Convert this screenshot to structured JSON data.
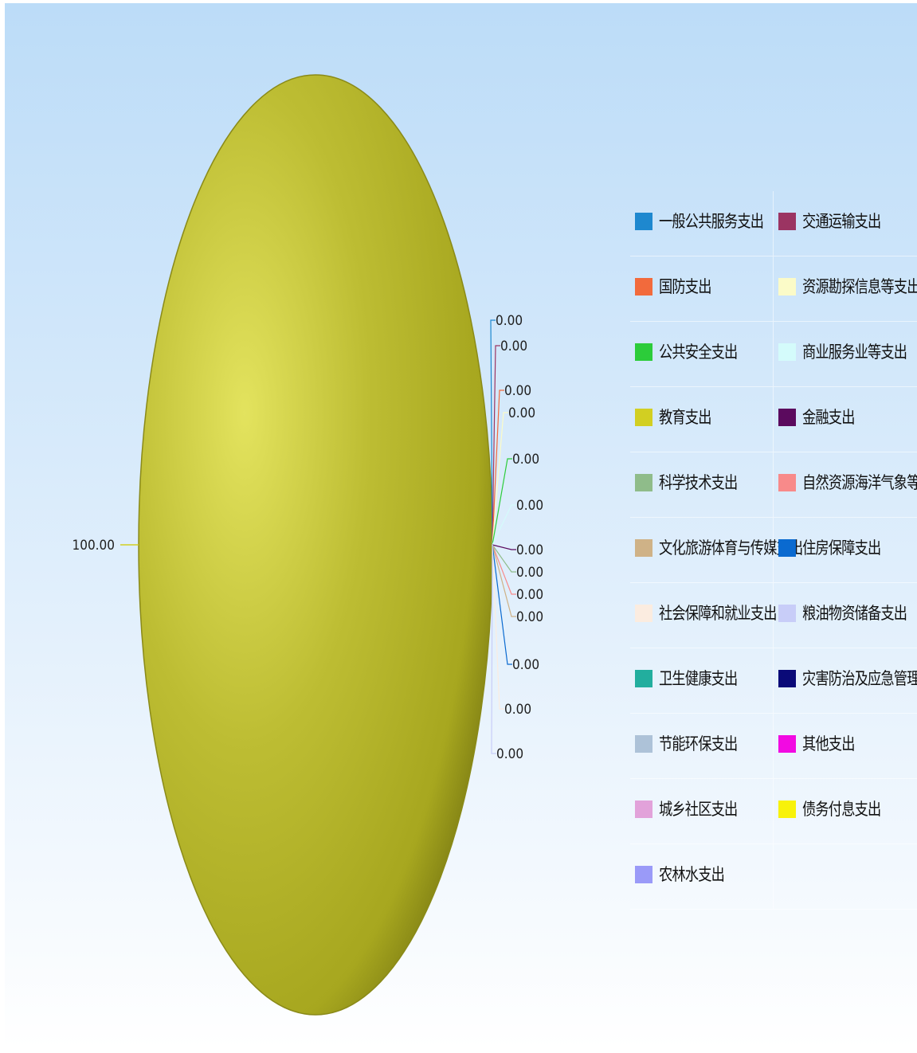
{
  "chart_data": {
    "type": "pie",
    "title": "",
    "categories": [
      "一般公共服务支出",
      "交通运输支出",
      "国防支出",
      "资源勘探信息等支出",
      "公共安全支出",
      "商业服务业等支出",
      "教育支出",
      "金融支出",
      "科学技术支出",
      "自然资源海洋气象等支出",
      "文化旅游体育与传媒支出",
      "住房保障支出",
      "社会保障和就业支出",
      "粮油物资储备支出",
      "卫生健康支出",
      "灾害防治及应急管理支出",
      "节能环保支出",
      "其他支出",
      "城乡社区支出",
      "债务付息支出",
      "农林水支出"
    ],
    "colors": [
      "#1e88cf",
      "#9b3462",
      "#f26a3c",
      "#fbfbc8",
      "#2ccc3a",
      "#d4fbfb",
      "#d2cf22",
      "#5b0a5e",
      "#8fbc8a",
      "#f88a8a",
      "#cfb287",
      "#0a6ad0",
      "#fbece0",
      "#c8cdf8",
      "#22ae9e",
      "#0a0a78",
      "#adc2d8",
      "#f20ae2",
      "#e2a2da",
      "#f8f20a",
      "#9a9af8"
    ],
    "slice_color": "#b6b633",
    "values": [
      0,
      0,
      0,
      0,
      0,
      0,
      100,
      0,
      0,
      0,
      0,
      0,
      0,
      0,
      0,
      0,
      0,
      0,
      0,
      0,
      0
    ],
    "value_labels": {
      "main": "100.00",
      "small": [
        "0.00",
        "0.00",
        "0.00",
        "0.00",
        "0.00",
        "0.00",
        "0.00",
        "0.00",
        "0.00",
        "0.00",
        "0.00",
        "0.00",
        "0.00",
        "0.00"
      ]
    },
    "legend_position": "right",
    "grid": false
  }
}
